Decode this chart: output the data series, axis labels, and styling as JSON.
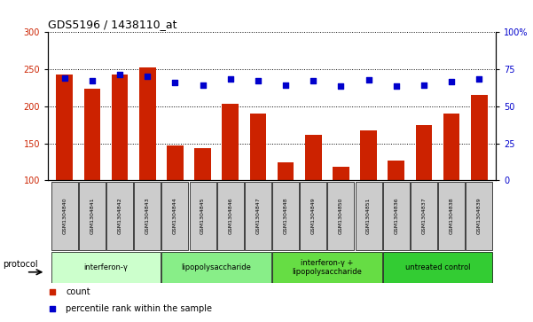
{
  "title": "GDS5196 / 1438110_at",
  "samples": [
    "GSM1304840",
    "GSM1304841",
    "GSM1304842",
    "GSM1304843",
    "GSM1304844",
    "GSM1304845",
    "GSM1304846",
    "GSM1304847",
    "GSM1304848",
    "GSM1304849",
    "GSM1304850",
    "GSM1304851",
    "GSM1304836",
    "GSM1304837",
    "GSM1304838",
    "GSM1304839"
  ],
  "counts": [
    243,
    224,
    243,
    252,
    147,
    144,
    203,
    190,
    124,
    161,
    118,
    168,
    127,
    175,
    190,
    215
  ],
  "percentiles": [
    238,
    235,
    243,
    240,
    232,
    229,
    237,
    234,
    229,
    234,
    227,
    236,
    227,
    229,
    233,
    237
  ],
  "ylim_left": [
    100,
    300
  ],
  "ylim_right": [
    0,
    100
  ],
  "yticks_left": [
    100,
    150,
    200,
    250,
    300
  ],
  "ytick_right_labels": [
    "0",
    "25",
    "50",
    "75",
    "100%"
  ],
  "bar_color": "#cc2200",
  "dot_color": "#0000cc",
  "protocols": [
    {
      "label": "interferon-γ",
      "start": 0,
      "end": 4,
      "color": "#ccffcc"
    },
    {
      "label": "lipopolysaccharide",
      "start": 4,
      "end": 8,
      "color": "#88ee88"
    },
    {
      "label": "interferon-γ +\nlipopolysaccharide",
      "start": 8,
      "end": 12,
      "color": "#66dd44"
    },
    {
      "label": "untreated control",
      "start": 12,
      "end": 16,
      "color": "#33cc33"
    }
  ],
  "protocol_label": "protocol",
  "legend_count": "count",
  "legend_percentile": "percentile rank within the sample"
}
